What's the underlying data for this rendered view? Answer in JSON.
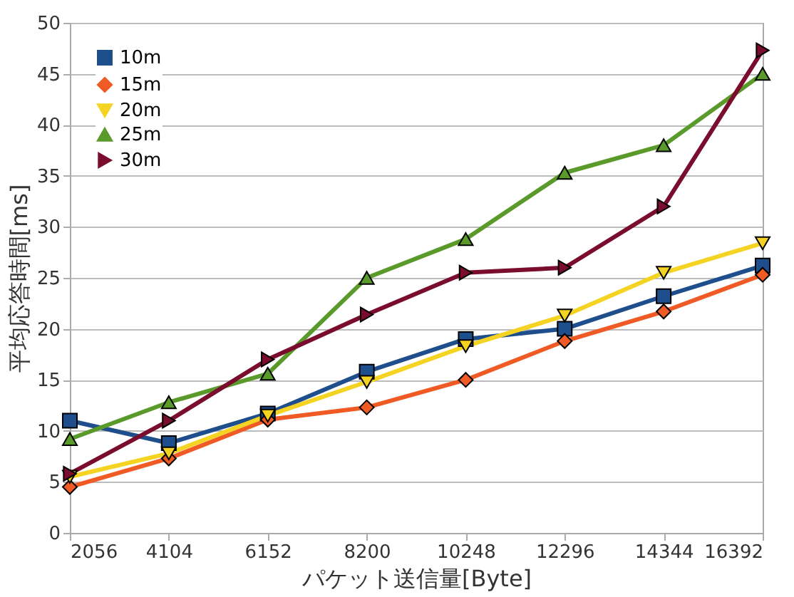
{
  "chart_data": {
    "type": "line",
    "xlabel": "パケット送信量[Byte]",
    "ylabel": "平均応答時間[ms]",
    "categories": [
      "2056",
      "4104",
      "6152",
      "8200",
      "10248",
      "12296",
      "14344",
      "16392"
    ],
    "series": [
      {
        "name": "10m",
        "color": "#1f4e8c",
        "marker": "square",
        "values": [
          11,
          8.8,
          11.7,
          15.8,
          19,
          20,
          23.2,
          26.2
        ]
      },
      {
        "name": "15m",
        "color": "#f05a24",
        "marker": "diamond",
        "values": [
          4.5,
          7.3,
          11.1,
          12.3,
          15,
          18.8,
          21.7,
          25.3
        ]
      },
      {
        "name": "20m",
        "color": "#f5d323",
        "marker": "triangle-down",
        "values": [
          5.5,
          7.8,
          11.5,
          14.8,
          18.3,
          21.3,
          25.5,
          28.4
        ]
      },
      {
        "name": "25m",
        "color": "#5a9a2a",
        "marker": "triangle",
        "values": [
          9.2,
          12.8,
          15.6,
          25,
          28.8,
          35.3,
          38,
          45
        ]
      },
      {
        "name": "30m",
        "color": "#7a0c2e",
        "marker": "triangle-right",
        "values": [
          5.8,
          11,
          17,
          21.4,
          25.5,
          26,
          32,
          47.3
        ]
      }
    ],
    "ylim": [
      0,
      50
    ],
    "yticks": [
      0,
      5,
      10,
      15,
      20,
      25,
      30,
      35,
      40,
      45,
      50
    ],
    "grid": "y",
    "legend": "top left",
    "line_style": "solid"
  }
}
